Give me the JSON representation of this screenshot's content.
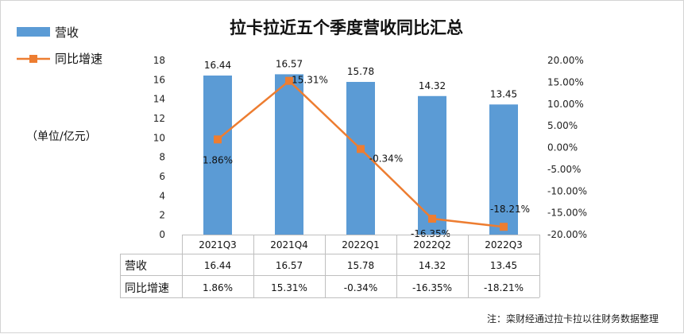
{
  "chart_data": {
    "type": "bar",
    "title": "拉卡拉近五个季度营收同比汇总",
    "unit_label": "（单位/亿元）",
    "categories": [
      "2021Q3",
      "2021Q4",
      "2022Q1",
      "2022Q2",
      "2022Q3"
    ],
    "series": [
      {
        "name": "营收",
        "type": "bar",
        "axis": "left",
        "values": [
          16.44,
          16.57,
          15.78,
          14.32,
          13.45
        ],
        "labels": [
          "16.44",
          "16.57",
          "15.78",
          "14.32",
          "13.45"
        ],
        "color": "#5b9bd5"
      },
      {
        "name": "同比增速",
        "type": "line",
        "axis": "right",
        "values": [
          1.86,
          15.31,
          -0.34,
          -16.35,
          -18.21
        ],
        "labels": [
          "1.86%",
          "15.31%",
          "-0.34%",
          "-16.35%",
          "-18.21%"
        ],
        "color": "#ed7d31"
      }
    ],
    "left_axis": {
      "min": 0,
      "max": 18,
      "step": 2,
      "ticks": [
        "0",
        "2",
        "4",
        "6",
        "8",
        "10",
        "12",
        "14",
        "16",
        "18"
      ]
    },
    "right_axis": {
      "min": -20,
      "max": 20,
      "step": 5,
      "ticks": [
        "-20.00%",
        "-15.00%",
        "-10.00%",
        "-5.00%",
        "0.00%",
        "5.00%",
        "10.00%",
        "15.00%",
        "20.00%"
      ]
    },
    "grid": false,
    "legend_position": "top-left",
    "data_table": {
      "rows": [
        {
          "header": "营收",
          "values": [
            "16.44",
            "16.57",
            "15.78",
            "14.32",
            "13.45"
          ]
        },
        {
          "header": "同比增速",
          "values": [
            "1.86%",
            "15.31%",
            "-0.34%",
            "-16.35%",
            "-18.21%"
          ]
        }
      ]
    },
    "source_note": "注：栾财经通过拉卡拉以往财务数据整理"
  }
}
